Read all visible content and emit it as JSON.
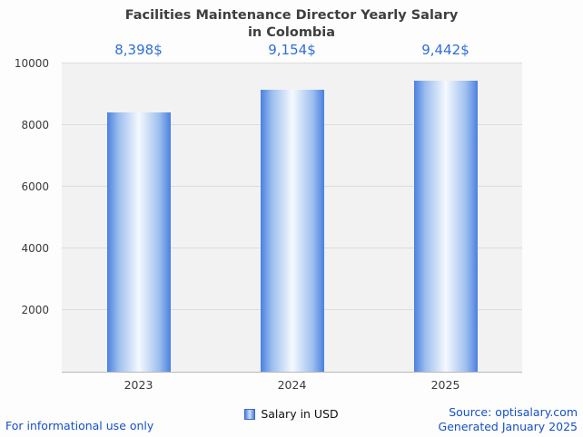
{
  "chart_data": {
    "type": "bar",
    "title": "Facilities Maintenance Director Yearly Salary\nin Colombia",
    "categories": [
      "2023",
      "2024",
      "2025"
    ],
    "values": [
      8398,
      9154,
      9442
    ],
    "value_labels": [
      "8,398$",
      "9,154$",
      "9,442$"
    ],
    "ylim": [
      0,
      10000
    ],
    "yticks": [
      2000,
      4000,
      6000,
      8000,
      10000
    ],
    "xlabel": "",
    "ylabel": "",
    "grid": true,
    "legend_position": "bottom-center",
    "legend": "Salary in USD"
  },
  "legend": {
    "label": "Salary in USD"
  },
  "footer": {
    "disclaimer": "For informational use only",
    "source": "Source: optisalary.com",
    "generated": "Generated January 2025"
  },
  "colors": {
    "bar_edge": "#4a80e0",
    "bar_center": "#f5f9ff",
    "plot_bg": "#f2f2f2",
    "grid": "#dcdcdc",
    "value_text": "#2e6fd8",
    "accent_link": "#1450cc"
  }
}
